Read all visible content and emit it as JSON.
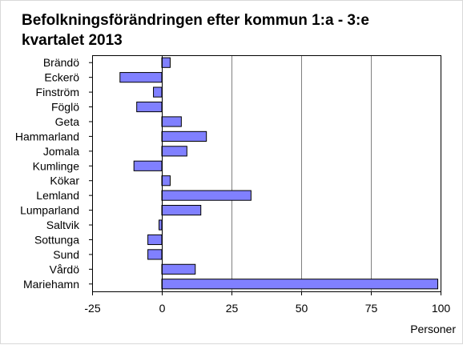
{
  "chart_data": {
    "type": "bar",
    "orientation": "horizontal",
    "title": "Befolkningsförändringen efter kommun 1:a - 3:e kvartalet 2013",
    "xlabel": "Personer",
    "ylabel": "",
    "categories": [
      "Brändö",
      "Eckerö",
      "Finström",
      "Föglö",
      "Geta",
      "Hammarland",
      "Jomala",
      "Kumlinge",
      "Kökar",
      "Lemland",
      "Lumparland",
      "Saltvik",
      "Sottunga",
      "Sund",
      "Vårdö",
      "Mariehamn"
    ],
    "values": [
      3,
      -15,
      -3,
      -9,
      7,
      16,
      9,
      -10,
      3,
      32,
      14,
      -1,
      -5,
      -5,
      12,
      99
    ],
    "xlim": [
      -25,
      100
    ],
    "xticks": [
      -25,
      0,
      25,
      50,
      75,
      100
    ],
    "xtick_labels": [
      "-25",
      "0",
      "25",
      "50",
      "75",
      "100"
    ],
    "grid": "vertical",
    "legend": "none",
    "colors": {
      "bar_fill": "#8080ff",
      "bar_stroke": "#000000",
      "gridline": "#808080",
      "axis": "#000000"
    }
  }
}
